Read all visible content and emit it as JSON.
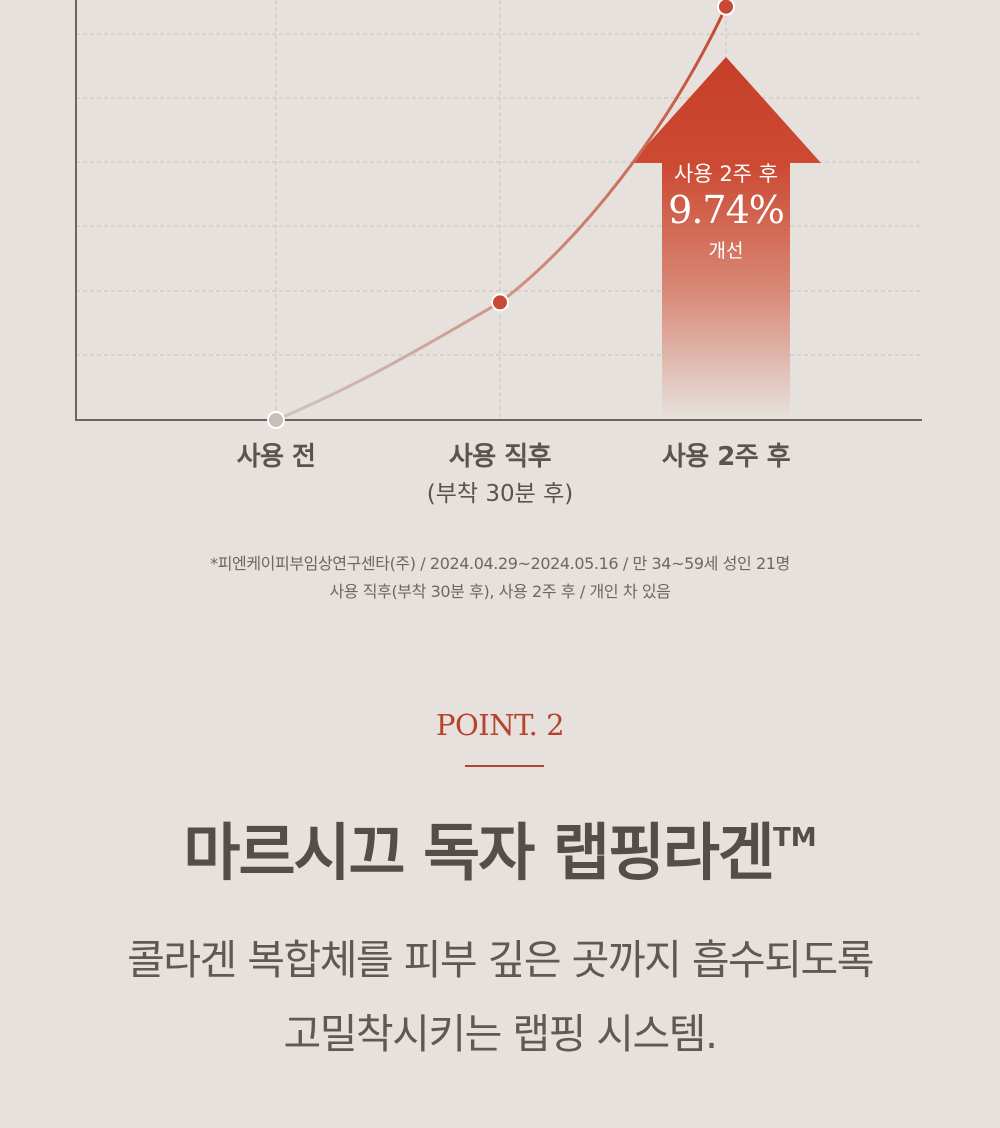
{
  "chart_data": {
    "type": "line",
    "categories": [
      "사용 전",
      "사용 직후",
      "사용 2주 후"
    ],
    "category_sublabels": [
      "",
      "(부착 30분 후)",
      ""
    ],
    "values": [
      0,
      3.5,
      12.3
    ],
    "ylim": [
      0,
      12.5
    ],
    "grid": true,
    "highlight": {
      "caption": "사용 2주 후",
      "value": "9.74%",
      "tail": "개선"
    },
    "colors": {
      "start_point": "#c7bdb9",
      "mid_point": "#c84a34",
      "end_point": "#c84a34",
      "arrow": "#c63f28",
      "grid": "#c9c2bd",
      "axis": "#6b6561"
    }
  },
  "footnote": {
    "line1": "*피엔케이피부임상연구센타(주) / 2024.04.29~2024.05.16 / 만 34~59세 성인 21명",
    "line2": "사용 직후(부착 30분 후), 사용 2주 후 / 개인 차 있음"
  },
  "section": {
    "point_label": "POINT. 2",
    "headline": "마르시끄 독자 랩핑라겐",
    "headline_mark": "TM",
    "description_line1": "콜라겐 복합체를 피부 깊은 곳까지 흡수되도록",
    "description_line2": "고밀착시키는 랩핑 시스템."
  }
}
